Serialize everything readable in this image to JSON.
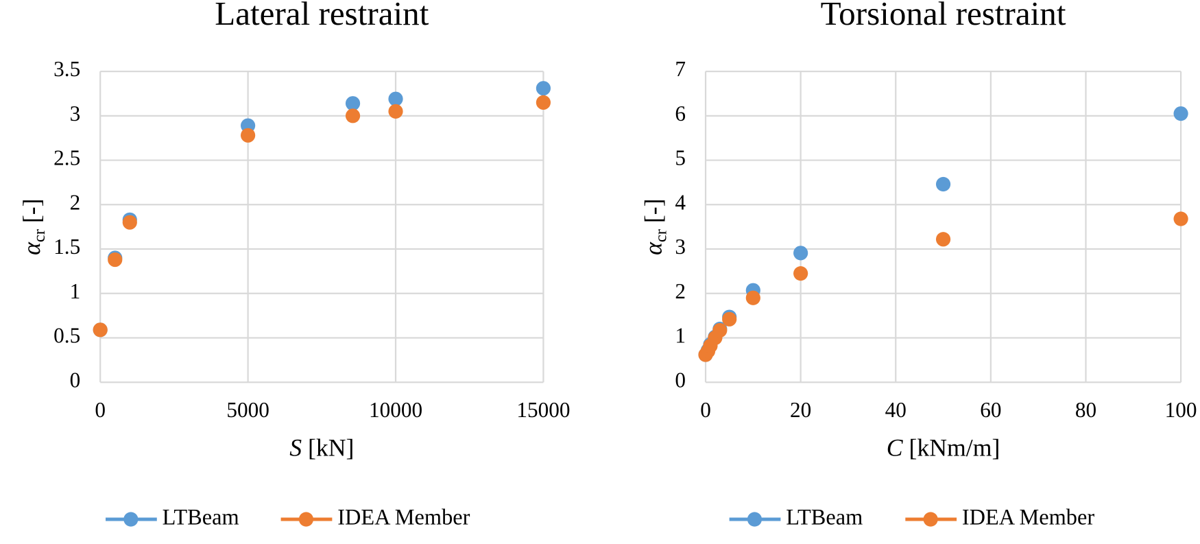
{
  "chart_data": [
    {
      "type": "line",
      "title": "Lateral restraint",
      "x_label": {
        "symbol": "S",
        "unit": "[kN]"
      },
      "y_label": {
        "symbol": "α",
        "subscript": "cr",
        "unit": "[-]"
      },
      "x": [
        0,
        500,
        1000,
        5000,
        8550,
        10000,
        15000
      ],
      "series": [
        {
          "name": "LTBeam",
          "color": "#5b9bd5",
          "values": [
            0.59,
            1.4,
            1.83,
            2.89,
            3.14,
            3.19,
            3.31
          ]
        },
        {
          "name": "IDEA Member",
          "color": "#ed7d31",
          "values": [
            0.59,
            1.38,
            1.8,
            2.78,
            3.0,
            3.05,
            3.15
          ]
        }
      ],
      "xlim": [
        0,
        15000
      ],
      "xticks": [
        0,
        5000,
        10000,
        15000
      ],
      "ylim": [
        0,
        3.5
      ],
      "yticks": [
        0,
        0.5,
        1,
        1.5,
        2,
        2.5,
        3,
        3.5
      ],
      "grid": true,
      "legend": "bottom"
    },
    {
      "type": "line",
      "title": "Torsional restraint",
      "x_label": {
        "symbol": "C",
        "unit": "[kNm/m]"
      },
      "y_label": {
        "symbol": "α",
        "subscript": "cr",
        "unit": "[-]"
      },
      "x": [
        0,
        0.5,
        1,
        2,
        3,
        5,
        10,
        20,
        50,
        100
      ],
      "series": [
        {
          "name": "LTBeam",
          "color": "#5b9bd5",
          "values": [
            0.62,
            0.72,
            0.85,
            1.02,
            1.2,
            1.47,
            2.07,
            2.91,
            4.46,
            6.05
          ]
        },
        {
          "name": "IDEA Member",
          "color": "#ed7d31",
          "values": [
            0.62,
            0.7,
            0.82,
            1.0,
            1.17,
            1.42,
            1.9,
            2.45,
            3.22,
            3.68
          ]
        }
      ],
      "xlim": [
        0,
        100
      ],
      "xticks": [
        0,
        20,
        40,
        60,
        80,
        100
      ],
      "ylim": [
        0,
        7
      ],
      "yticks": [
        0,
        1,
        2,
        3,
        4,
        5,
        6,
        7
      ],
      "grid": true,
      "legend": "bottom"
    }
  ]
}
